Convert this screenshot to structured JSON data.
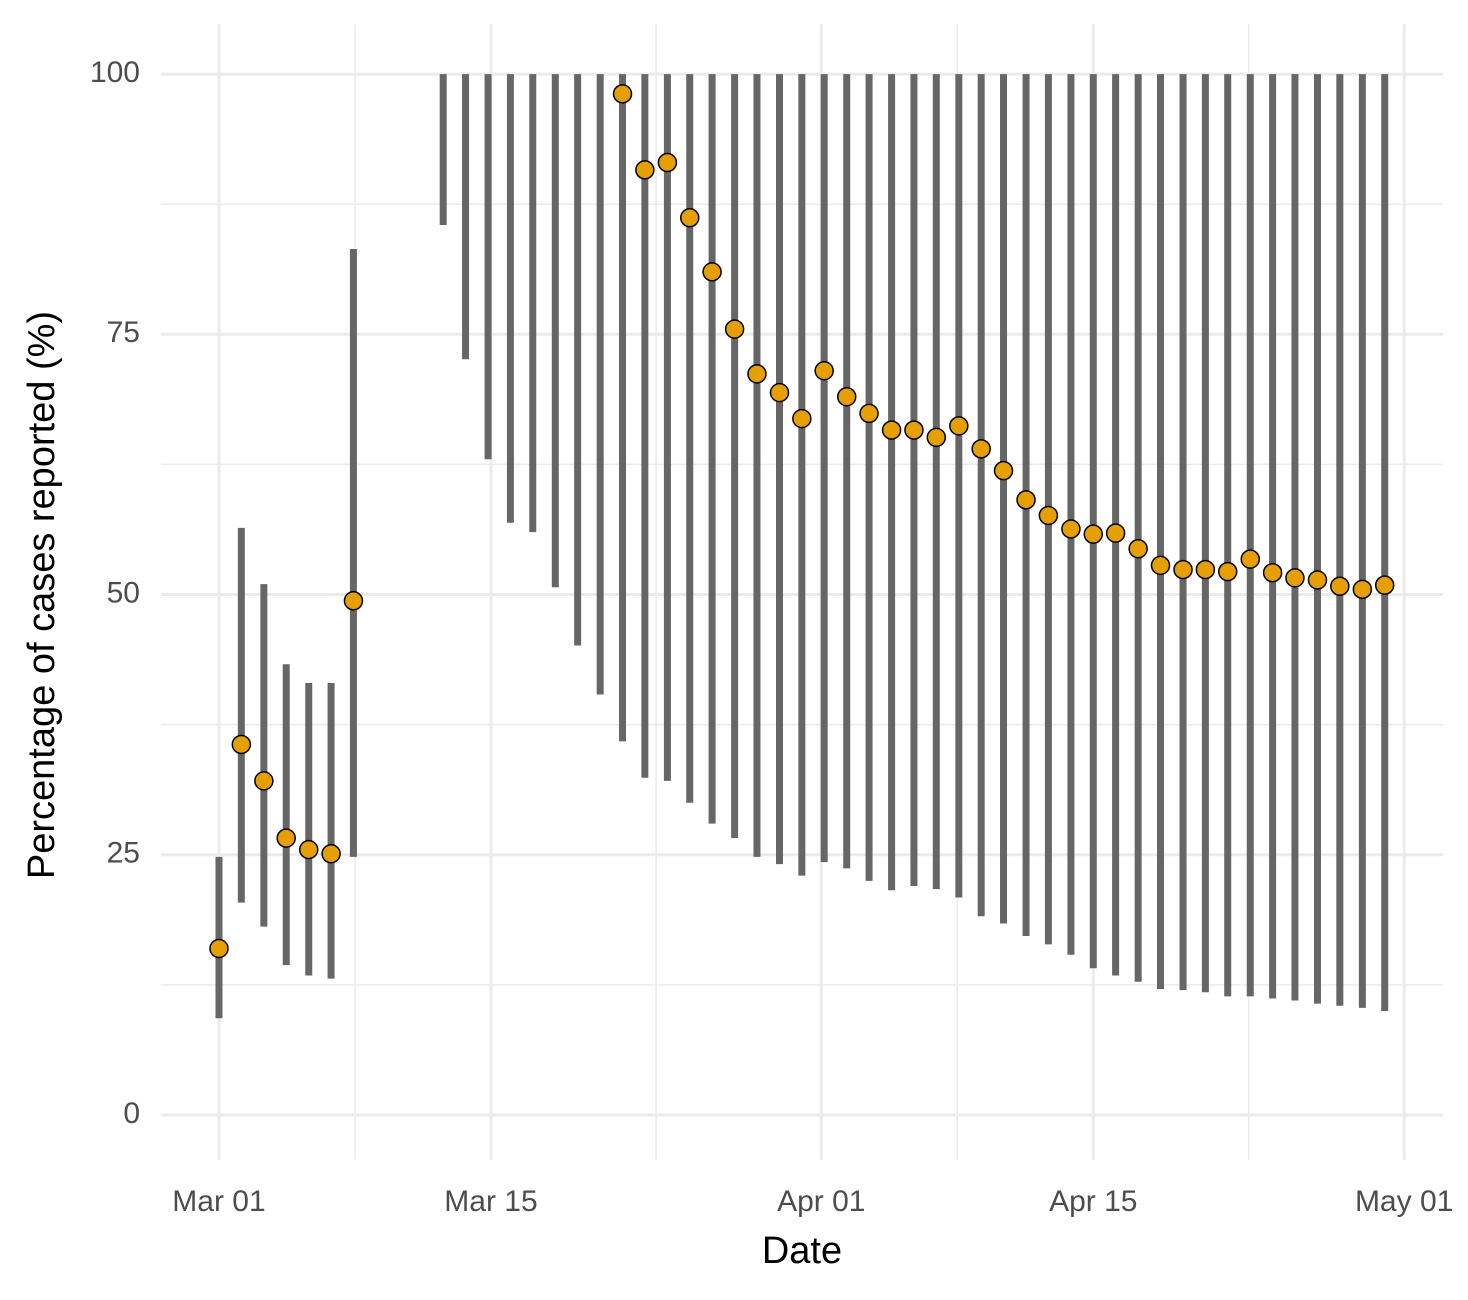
{
  "chart_data": {
    "type": "errorbar",
    "xlabel": "Date",
    "ylabel": "Percentage of cases reported (%)",
    "xlim": [
      -3,
      63
    ],
    "ylim": [
      -4.3,
      104.8
    ],
    "xticks": [
      {
        "value": 0,
        "label": "Mar 01"
      },
      {
        "value": 14,
        "label": "Mar 15"
      },
      {
        "value": 31,
        "label": "Apr 01"
      },
      {
        "value": 45,
        "label": "Apr 15"
      },
      {
        "value": 61,
        "label": "May 01"
      }
    ],
    "yticks": [
      0,
      25,
      50,
      75,
      100
    ],
    "grid": true,
    "series": [
      {
        "color": "#e69f00",
        "bar_color": "#666666",
        "x": [
          0,
          1.15,
          2.31,
          3.46,
          4.62,
          5.77,
          6.92,
          11.54,
          12.69,
          13.85,
          15,
          16.15,
          17.31,
          18.46,
          19.62,
          20.77,
          21.92,
          23.08,
          24.23,
          25.38,
          26.54,
          27.69,
          28.85,
          30,
          31.15,
          32.31,
          33.46,
          34.62,
          35.77,
          36.92,
          38.08,
          39.23,
          40.38,
          41.54,
          42.69,
          43.85,
          45,
          46.15,
          47.31,
          48.46,
          49.62,
          50.77,
          51.92,
          53.08,
          54.23,
          55.38,
          56.54,
          57.69,
          58.85,
          60
        ],
        "values": [
          16.0,
          35.6,
          32.1,
          26.6,
          25.5,
          25.1,
          49.4,
          null,
          null,
          null,
          null,
          null,
          null,
          null,
          null,
          98.1,
          90.8,
          91.5,
          86.2,
          81.0,
          75.5,
          71.2,
          69.4,
          66.9,
          71.5,
          69.0,
          67.4,
          65.8,
          65.8,
          65.1,
          66.2,
          64.0,
          61.9,
          59.1,
          57.6,
          56.3,
          55.8,
          55.9,
          54.4,
          52.8,
          52.4,
          52.4,
          52.2,
          53.4,
          52.1,
          51.6,
          51.4,
          50.8,
          50.5,
          50.9
        ],
        "lower": [
          9.3,
          20.4,
          18.1,
          14.4,
          13.4,
          13.1,
          24.8,
          85.5,
          72.6,
          63.0,
          56.9,
          56.0,
          50.7,
          45.1,
          40.4,
          35.9,
          32.4,
          32.1,
          30.0,
          28.0,
          26.6,
          24.8,
          24.1,
          23.0,
          24.3,
          23.7,
          22.5,
          21.6,
          22.0,
          21.7,
          20.9,
          19.1,
          18.4,
          17.2,
          16.4,
          15.4,
          14.1,
          13.4,
          12.8,
          12.1,
          12.0,
          11.8,
          11.4,
          11.4,
          11.2,
          11.0,
          10.7,
          10.5,
          10.3,
          10.0
        ],
        "upper": [
          24.8,
          56.4,
          51.0,
          43.3,
          41.5,
          41.5,
          83.2,
          100,
          100,
          100,
          100,
          100,
          100,
          100,
          100,
          100,
          100,
          100,
          100,
          100,
          100,
          100,
          100,
          100,
          100,
          100,
          100,
          100,
          100,
          100,
          100,
          100,
          100,
          100,
          100,
          100,
          100,
          100,
          100,
          100,
          100,
          100,
          100,
          100,
          100,
          100,
          100,
          100,
          100,
          100
        ]
      }
    ]
  }
}
